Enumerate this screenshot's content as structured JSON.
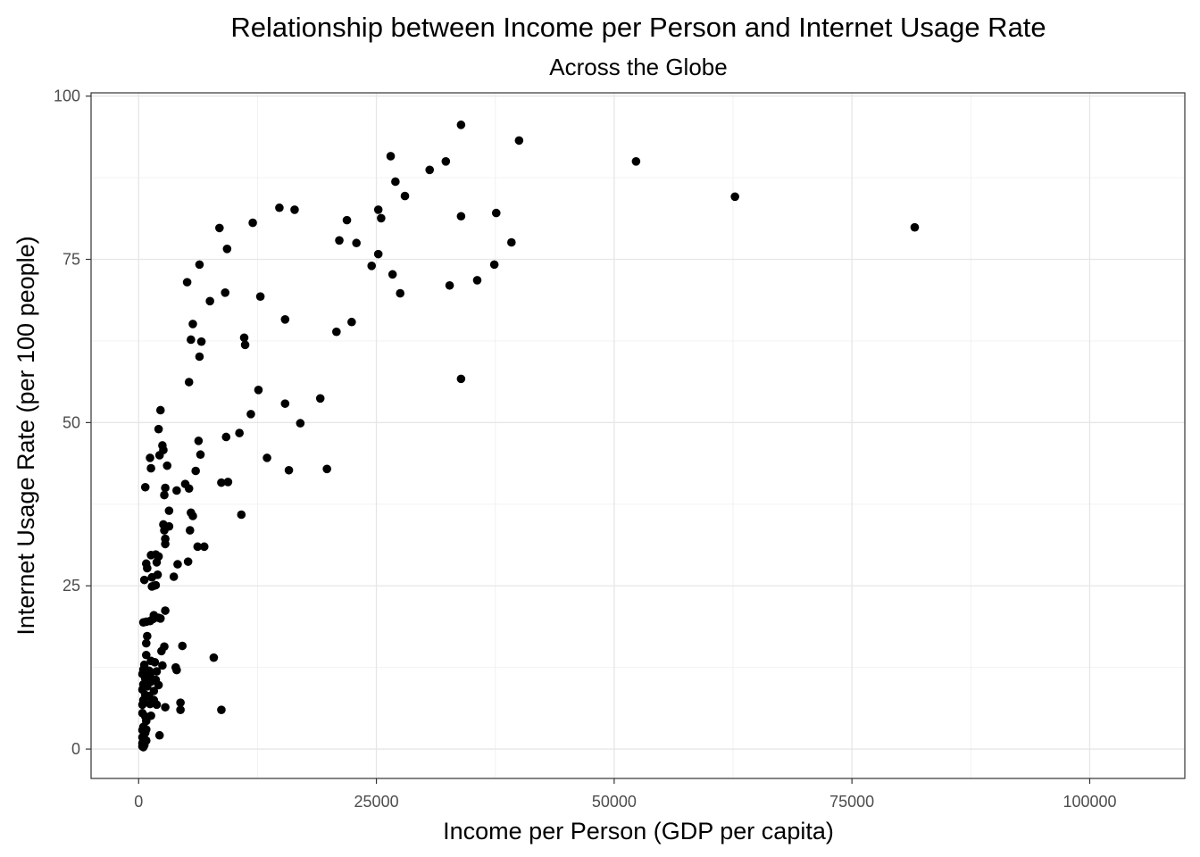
{
  "chart_data": {
    "type": "scatter",
    "title": "Relationship between Income per Person and Internet Usage Rate",
    "subtitle": "Across the Globe",
    "xlabel": "Income per Person (GDP per capita)",
    "ylabel": "Internet Usage Rate (per 100 people)",
    "xlim": [
      -5000,
      110000
    ],
    "ylim": [
      -4.5,
      100.5
    ],
    "x_ticks": [
      0,
      25000,
      50000,
      75000,
      100000
    ],
    "x_tick_labels": [
      "0",
      "25000",
      "50000",
      "75000",
      "100000"
    ],
    "y_ticks": [
      0,
      25,
      50,
      75,
      100
    ],
    "y_tick_labels": [
      "0",
      "25",
      "50",
      "75",
      "100"
    ],
    "grid": true,
    "point_color": "#000000",
    "points": [
      [
        33900,
        95.6
      ],
      [
        40000,
        93.2
      ],
      [
        52300,
        90.0
      ],
      [
        32300,
        90.0
      ],
      [
        26500,
        90.8
      ],
      [
        30600,
        88.7
      ],
      [
        27000,
        86.9
      ],
      [
        28000,
        84.7
      ],
      [
        62700,
        84.6
      ],
      [
        14800,
        82.9
      ],
      [
        16400,
        82.6
      ],
      [
        25200,
        82.6
      ],
      [
        25500,
        81.3
      ],
      [
        33900,
        81.6
      ],
      [
        37600,
        82.1
      ],
      [
        21900,
        81.0
      ],
      [
        12000,
        80.6
      ],
      [
        8500,
        79.8
      ],
      [
        81600,
        79.9
      ],
      [
        21100,
        77.9
      ],
      [
        22900,
        77.5
      ],
      [
        39200,
        77.6
      ],
      [
        9300,
        76.6
      ],
      [
        25200,
        75.8
      ],
      [
        24500,
        74.0
      ],
      [
        37400,
        74.2
      ],
      [
        6400,
        74.2
      ],
      [
        26700,
        72.7
      ],
      [
        5100,
        71.5
      ],
      [
        35600,
        71.8
      ],
      [
        32700,
        71.0
      ],
      [
        27500,
        69.8
      ],
      [
        9100,
        69.9
      ],
      [
        12800,
        69.3
      ],
      [
        7500,
        68.6
      ],
      [
        15400,
        65.8
      ],
      [
        22400,
        65.4
      ],
      [
        5700,
        65.1
      ],
      [
        11100,
        63.0
      ],
      [
        20800,
        63.9
      ],
      [
        5500,
        62.7
      ],
      [
        6600,
        62.4
      ],
      [
        11200,
        61.9
      ],
      [
        6400,
        60.1
      ],
      [
        33900,
        56.7
      ],
      [
        5300,
        56.2
      ],
      [
        12600,
        55.0
      ],
      [
        19100,
        53.7
      ],
      [
        15400,
        52.9
      ],
      [
        2300,
        51.9
      ],
      [
        11800,
        51.3
      ],
      [
        17000,
        49.9
      ],
      [
        2100,
        49.0
      ],
      [
        10600,
        48.4
      ],
      [
        9200,
        47.8
      ],
      [
        6300,
        47.2
      ],
      [
        2500,
        46.5
      ],
      [
        2600,
        45.8
      ],
      [
        2200,
        45.0
      ],
      [
        6500,
        45.1
      ],
      [
        1200,
        44.6
      ],
      [
        13500,
        44.6
      ],
      [
        3000,
        43.4
      ],
      [
        1300,
        43.0
      ],
      [
        15800,
        42.7
      ],
      [
        19800,
        42.9
      ],
      [
        6000,
        42.6
      ],
      [
        4900,
        40.6
      ],
      [
        8700,
        40.8
      ],
      [
        9400,
        40.9
      ],
      [
        700,
        40.1
      ],
      [
        5300,
        39.9
      ],
      [
        2800,
        40.0
      ],
      [
        4000,
        39.6
      ],
      [
        2700,
        38.9
      ],
      [
        3200,
        36.5
      ],
      [
        5500,
        36.2
      ],
      [
        10800,
        35.9
      ],
      [
        5700,
        35.7
      ],
      [
        2600,
        34.4
      ],
      [
        3200,
        34.1
      ],
      [
        2700,
        33.5
      ],
      [
        5400,
        33.5
      ],
      [
        2800,
        32.2
      ],
      [
        2800,
        31.4
      ],
      [
        6200,
        31.0
      ],
      [
        6900,
        31.0
      ],
      [
        1300,
        29.7
      ],
      [
        1800,
        29.8
      ],
      [
        2100,
        29.5
      ],
      [
        5200,
        28.7
      ],
      [
        1900,
        28.6
      ],
      [
        800,
        28.4
      ],
      [
        900,
        27.7
      ],
      [
        4100,
        28.3
      ],
      [
        2000,
        26.7
      ],
      [
        1400,
        26.3
      ],
      [
        600,
        25.9
      ],
      [
        3700,
        26.4
      ],
      [
        1600,
        25.0
      ],
      [
        1400,
        24.9
      ],
      [
        1800,
        25.1
      ],
      [
        2800,
        21.2
      ],
      [
        1600,
        20.5
      ],
      [
        2300,
        20.0
      ],
      [
        1200,
        19.6
      ],
      [
        2100,
        20.1
      ],
      [
        1500,
        19.9
      ],
      [
        500,
        19.4
      ],
      [
        800,
        19.5
      ],
      [
        900,
        17.3
      ],
      [
        800,
        16.2
      ],
      [
        2700,
        15.7
      ],
      [
        4600,
        15.8
      ],
      [
        2400,
        15.0
      ],
      [
        800,
        14.4
      ],
      [
        7900,
        14.0
      ],
      [
        1300,
        13.5
      ],
      [
        600,
        12.9
      ],
      [
        1700,
        13.3
      ],
      [
        2500,
        12.8
      ],
      [
        3900,
        12.5
      ],
      [
        4000,
        12.1
      ],
      [
        500,
        12.2
      ],
      [
        1100,
        12.0
      ],
      [
        1900,
        11.9
      ],
      [
        1200,
        11.3
      ],
      [
        400,
        11.5
      ],
      [
        700,
        10.8
      ],
      [
        1800,
        10.6
      ],
      [
        1300,
        10.3
      ],
      [
        500,
        9.9
      ],
      [
        900,
        9.6
      ],
      [
        2100,
        9.8
      ],
      [
        400,
        9.1
      ],
      [
        1600,
        8.9
      ],
      [
        700,
        8.3
      ],
      [
        1100,
        8.1
      ],
      [
        500,
        7.5
      ],
      [
        1600,
        7.5
      ],
      [
        4400,
        7.1
      ],
      [
        400,
        6.8
      ],
      [
        1200,
        6.9
      ],
      [
        1900,
        6.8
      ],
      [
        2800,
        6.4
      ],
      [
        4400,
        6.0
      ],
      [
        8700,
        6.0
      ],
      [
        400,
        5.5
      ],
      [
        1300,
        5.1
      ],
      [
        700,
        5.0
      ],
      [
        800,
        4.3
      ],
      [
        500,
        3.4
      ],
      [
        800,
        3.0
      ],
      [
        400,
        2.9
      ],
      [
        700,
        2.5
      ],
      [
        2200,
        2.1
      ],
      [
        400,
        1.8
      ],
      [
        600,
        1.5
      ],
      [
        800,
        1.3
      ],
      [
        400,
        0.9
      ],
      [
        600,
        0.6
      ],
      [
        400,
        0.4
      ],
      [
        500,
        0.3
      ]
    ]
  }
}
